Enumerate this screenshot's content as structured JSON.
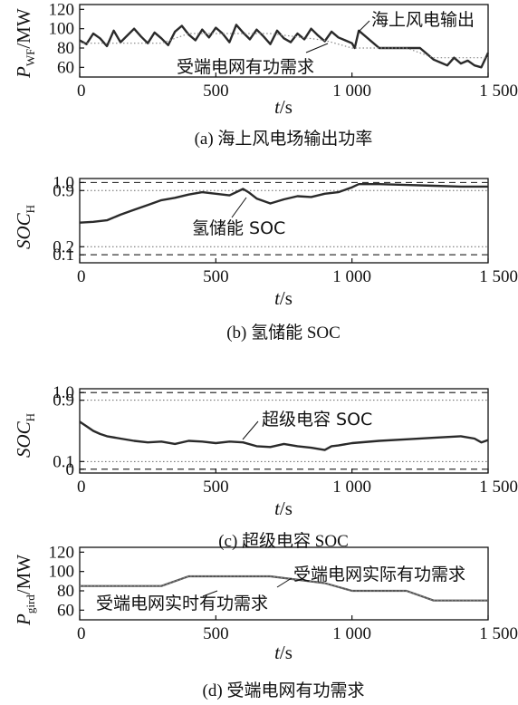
{
  "chart_data": [
    {
      "type": "line",
      "caption": "(a) 海上风电场输出功率",
      "ylabel": "P_WF/MW",
      "xlabel": "t/s",
      "xlim": [
        0,
        1500
      ],
      "ylim": [
        50,
        125
      ],
      "xticks": [
        "0",
        "500",
        "1 000",
        "1 500"
      ],
      "yticks": [
        "120",
        "100",
        "80",
        "60"
      ],
      "series": [
        {
          "name": "海上风电输出",
          "style": "solid-thick",
          "x": [
            0,
            25,
            50,
            75,
            100,
            125,
            150,
            175,
            200,
            225,
            250,
            275,
            300,
            325,
            350,
            375,
            400,
            425,
            450,
            475,
            500,
            525,
            550,
            575,
            600,
            625,
            650,
            675,
            700,
            725,
            750,
            775,
            800,
            825,
            850,
            875,
            900,
            925,
            950,
            975,
            1000,
            1010,
            1025,
            1100,
            1200,
            1250,
            1300,
            1325,
            1350,
            1375,
            1400,
            1425,
            1450,
            1475,
            1500
          ],
          "y": [
            88,
            84,
            95,
            90,
            82,
            98,
            86,
            93,
            100,
            92,
            85,
            96,
            90,
            83,
            97,
            103,
            94,
            88,
            99,
            91,
            101,
            95,
            86,
            104,
            96,
            89,
            99,
            92,
            84,
            98,
            90,
            86,
            95,
            89,
            100,
            93,
            87,
            97,
            91,
            88,
            85,
            80,
            98,
            80,
            80,
            80,
            68,
            65,
            62,
            70,
            64,
            67,
            62,
            60,
            75
          ]
        },
        {
          "name": "受端电网有功需求",
          "style": "dotted",
          "x": [
            0,
            300,
            400,
            700,
            900,
            1000,
            1200,
            1300,
            1500
          ],
          "y": [
            85,
            85,
            95,
            95,
            88,
            80,
            80,
            70,
            70
          ]
        }
      ]
    },
    {
      "type": "line",
      "caption": "(b) 氢储能 SOC",
      "ylabel": "SOC_H",
      "xlabel": "t/s",
      "xlim": [
        0,
        1500
      ],
      "ylim": [
        0,
        1.05
      ],
      "xticks": [
        "0",
        "500",
        "1 000",
        "1 500"
      ],
      "yticks": [
        "1.0",
        "0.9",
        "0.2",
        "0.1"
      ],
      "reference_lines": [
        {
          "y": 1.0,
          "style": "dashed"
        },
        {
          "y": 0.9,
          "style": "dotted"
        },
        {
          "y": 0.2,
          "style": "dotted"
        },
        {
          "y": 0.1,
          "style": "dashed"
        }
      ],
      "series": [
        {
          "name": "氢储能 SOC",
          "style": "solid-thick",
          "x": [
            0,
            50,
            100,
            150,
            200,
            250,
            300,
            350,
            400,
            450,
            500,
            550,
            600,
            620,
            650,
            700,
            750,
            800,
            850,
            900,
            950,
            1000,
            1025,
            1100,
            1200,
            1300,
            1400,
            1500
          ],
          "y": [
            0.5,
            0.51,
            0.53,
            0.6,
            0.66,
            0.72,
            0.78,
            0.81,
            0.85,
            0.88,
            0.86,
            0.84,
            0.92,
            0.88,
            0.8,
            0.74,
            0.79,
            0.83,
            0.82,
            0.86,
            0.88,
            0.94,
            0.98,
            0.98,
            0.97,
            0.96,
            0.95,
            0.95
          ]
        }
      ]
    },
    {
      "type": "line",
      "caption": "(c) 超级电容 SOC",
      "ylabel": "SOC_H",
      "xlabel": "t/s",
      "xlim": [
        0,
        1500
      ],
      "ylim": [
        -0.05,
        1.05
      ],
      "xticks": [
        "0",
        "500",
        "1 000",
        "1 500"
      ],
      "yticks": [
        "1.0",
        "0.9",
        "0.1",
        "0"
      ],
      "reference_lines": [
        {
          "y": 1.0,
          "style": "dashed"
        },
        {
          "y": 0.9,
          "style": "dotted"
        },
        {
          "y": 0.1,
          "style": "dotted"
        },
        {
          "y": 0.0,
          "style": "dashed"
        }
      ],
      "series": [
        {
          "name": "超级电容 SOC",
          "style": "solid-thick",
          "x": [
            0,
            25,
            50,
            75,
            100,
            150,
            200,
            250,
            300,
            350,
            400,
            450,
            500,
            550,
            600,
            650,
            700,
            750,
            800,
            850,
            900,
            925,
            950,
            1000,
            1100,
            1200,
            1300,
            1400,
            1450,
            1475,
            1500
          ],
          "y": [
            0.62,
            0.56,
            0.5,
            0.46,
            0.43,
            0.4,
            0.37,
            0.35,
            0.36,
            0.33,
            0.37,
            0.36,
            0.34,
            0.36,
            0.35,
            0.3,
            0.29,
            0.33,
            0.3,
            0.28,
            0.25,
            0.3,
            0.31,
            0.34,
            0.37,
            0.39,
            0.41,
            0.43,
            0.4,
            0.35,
            0.38
          ]
        }
      ]
    },
    {
      "type": "line",
      "caption": "(d) 受端电网有功需求",
      "ylabel": "P_gird/MW",
      "xlabel": "t/s",
      "xlim": [
        0,
        1500
      ],
      "ylim": [
        50,
        125
      ],
      "xticks": [
        "0",
        "500",
        "1 000",
        "1 500"
      ],
      "yticks": [
        "120",
        "100",
        "80",
        "60"
      ],
      "series": [
        {
          "name": "受端电网实际有功需求",
          "style": "solid",
          "x": [
            0,
            300,
            400,
            700,
            900,
            1000,
            1200,
            1300,
            1500
          ],
          "y": [
            85,
            85,
            95,
            95,
            88,
            80,
            80,
            70,
            70
          ]
        },
        {
          "name": "受端电网实时有功需求",
          "style": "dotted",
          "x": [
            0,
            300,
            400,
            700,
            900,
            1000,
            1200,
            1300,
            1500
          ],
          "y": [
            85,
            85,
            95,
            95,
            88,
            80,
            80,
            70,
            70
          ]
        }
      ]
    }
  ]
}
